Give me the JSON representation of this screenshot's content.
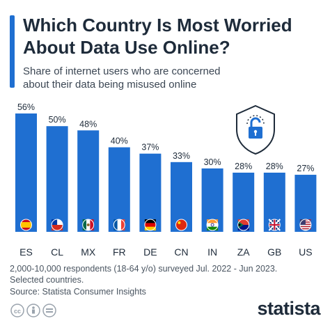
{
  "header": {
    "title_line1": "Which Country Is Most Worried",
    "title_line2": "About Data Use Online?",
    "subtitle_line1": "Share of internet users who are concerned",
    "subtitle_line2": "about their data being misused online"
  },
  "chart_data": {
    "type": "bar",
    "categories": [
      "ES",
      "CL",
      "MX",
      "FR",
      "DE",
      "CN",
      "IN",
      "ZA",
      "GB",
      "US"
    ],
    "values": [
      56,
      50,
      48,
      40,
      37,
      33,
      30,
      28,
      28,
      27
    ],
    "value_labels": [
      "56%",
      "50%",
      "48%",
      "40%",
      "37%",
      "33%",
      "30%",
      "28%",
      "28%",
      "27%"
    ],
    "unit": "%",
    "ylim": [
      0,
      56
    ],
    "grid": false,
    "title": "Which Country Is Most Worried About Data Use Online?",
    "subtitle": "Share of internet users who are concerned about their data being misused online"
  },
  "flag_icons": [
    "spain-flag-icon",
    "chile-flag-icon",
    "mexico-flag-icon",
    "france-flag-icon",
    "germany-flag-icon",
    "china-flag-icon",
    "india-flag-icon",
    "south-africa-flag-icon",
    "uk-flag-icon",
    "us-flag-icon"
  ],
  "colors": {
    "bar": "#1f6fd1",
    "accent": "#1f6fd1",
    "title": "#1e2b3a",
    "text": "#3b4653"
  },
  "footer": {
    "note_line1": "2,000-10,000 respondents (18-64 y/o) surveyed Jul. 2022 - Jun 2023.",
    "note_line2": "Selected countries.",
    "source": "Source: Statista Consumer Insights",
    "logo": "statista"
  },
  "decorations": {
    "illustration": "shield-lock-icon",
    "license_icons": [
      "cc-icon",
      "person-icon",
      "equals-icon"
    ]
  }
}
